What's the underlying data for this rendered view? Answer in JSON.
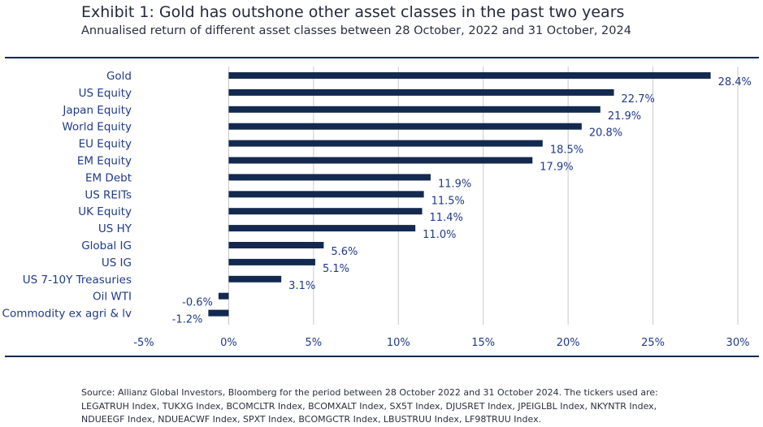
{
  "header": {
    "title": "Exhibit 1: Gold has outshone other asset classes in the past two years",
    "subtitle": "Annualised return of different asset classes between 28 October, 2022 and 31 October, 2024"
  },
  "chart_data": {
    "type": "bar",
    "orientation": "horizontal",
    "categories": [
      "Gold",
      "US Equity",
      "Japan Equity",
      "World Equity",
      "EU Equity",
      "EM Equity",
      "EM Debt",
      "US REITs",
      "UK Equity",
      "US HY",
      "Global IG",
      "US IG",
      "US 7-10Y Treasuries",
      "Oil WTI",
      "Commodity ex agri & lv"
    ],
    "values": [
      28.4,
      22.7,
      21.9,
      20.8,
      18.5,
      17.9,
      11.9,
      11.5,
      11.4,
      11.0,
      5.6,
      5.1,
      3.1,
      -0.6,
      -1.2
    ],
    "value_labels": [
      "28.4%",
      "22.7%",
      "21.9%",
      "20.8%",
      "18.5%",
      "17.9%",
      "11.9%",
      "11.5%",
      "11.4%",
      "11.0%",
      "5.6%",
      "5.1%",
      "3.1%",
      "-0.6%",
      "-1.2%"
    ],
    "xlim": [
      -5,
      30
    ],
    "xticks": [
      -5,
      0,
      5,
      10,
      15,
      20,
      25,
      30
    ],
    "xtick_labels": [
      "-5%",
      "0%",
      "5%",
      "10%",
      "15%",
      "20%",
      "25%",
      "30%"
    ],
    "grid": "vertical",
    "legend": "none",
    "colors": {
      "bar": "#13294f",
      "grid": "#c9c9c9",
      "category_label": "#1f3a8a",
      "value_label": "#1f3a8a",
      "axis_label": "#1f3a8a"
    }
  },
  "footnote": {
    "text": "Source: Allianz Global Investors, Bloomberg for the period between 28 October 2022 and 31 October 2024. The tickers used are: LEGATRUH Index, TUKXG Index, BCOMCLTR Index, BCOMXALT Index, SX5T Index, DJUSRET Index, JPEIGLBL Index, NKYNTR Index, NDUEEGF Index, NDUEACWF Index, SPXT Index, BCOMGCTR Index, LBUSTRUU Index, LF98TRUU Index."
  }
}
